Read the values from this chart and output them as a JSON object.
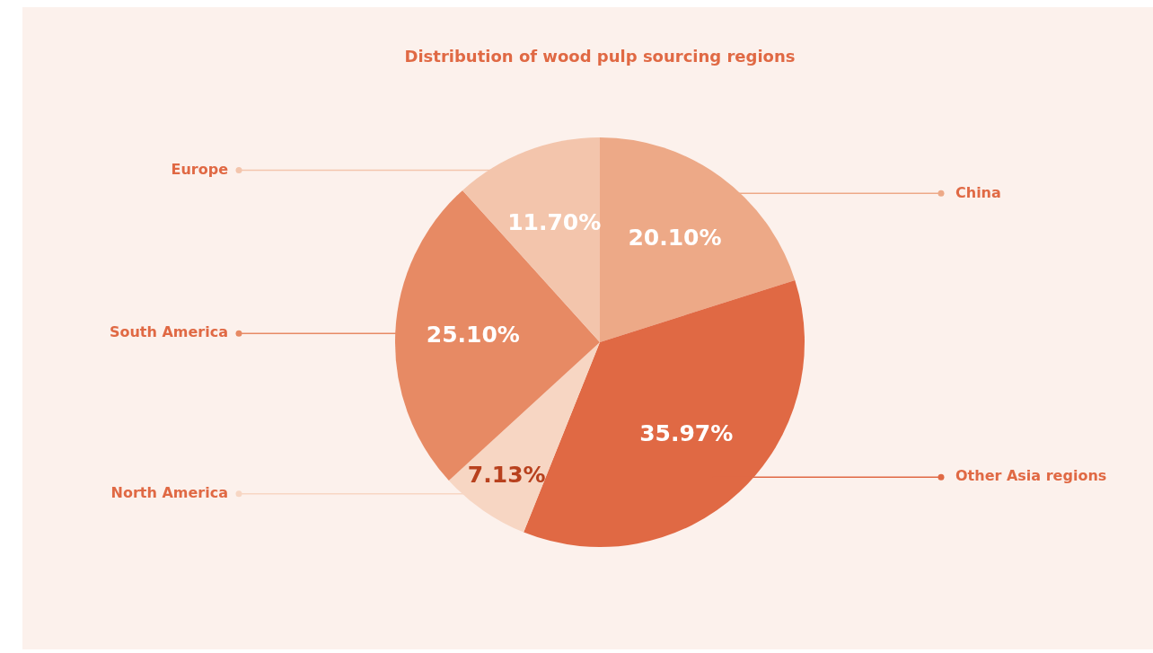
{
  "chart_data": {
    "type": "pie",
    "title": "Distribution of wood pulp sourcing regions",
    "categories": [
      "China",
      "Other Asia regions",
      "North America",
      "South America",
      "Europe"
    ],
    "values": [
      20.1,
      35.97,
      7.13,
      25.1,
      11.7
    ],
    "colors": [
      "#eda987",
      "#e06944",
      "#f7d6c3",
      "#e78a64",
      "#f3c5ac"
    ],
    "value_labels": [
      "20.10%",
      "35.97%",
      "7.13%",
      "25.10%",
      "11.70%"
    ],
    "legend": "left"
  }
}
